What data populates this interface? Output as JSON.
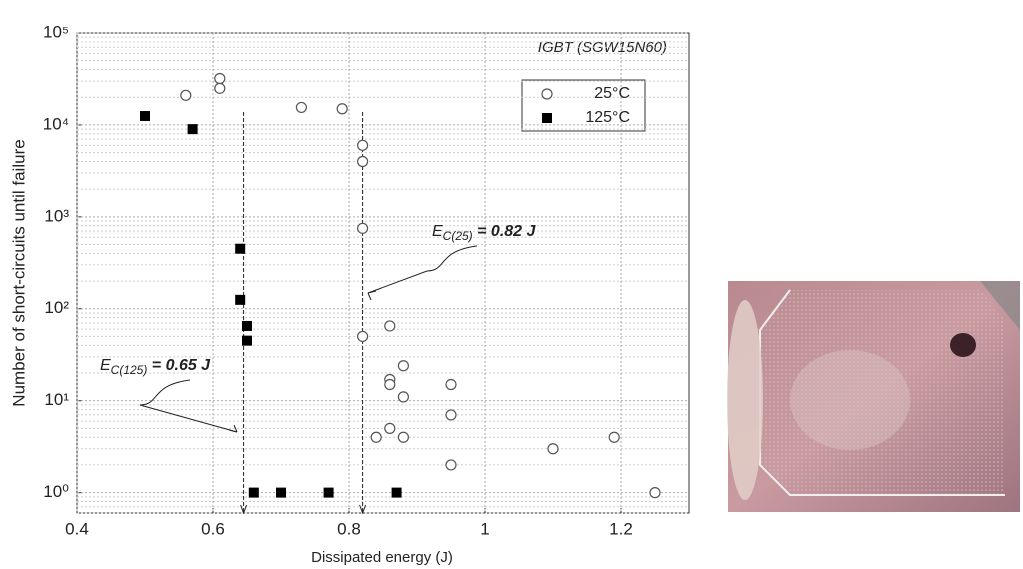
{
  "chart_data": {
    "type": "scatter",
    "annotation_title": "IGBT (SGW15N60)",
    "xlabel": "Dissipated energy (J)",
    "ylabel": "Number of short-circuits until failure",
    "xlim": [
      0.4,
      1.3
    ],
    "xticks": [
      0.4,
      0.6,
      0.8,
      1,
      1.2
    ],
    "ylim": [
      0.6,
      100000
    ],
    "log_y": true,
    "grid": true,
    "yticks": [
      {
        "value": 1,
        "label": "10⁰"
      },
      {
        "value": 10,
        "label": "10¹"
      },
      {
        "value": 100,
        "label": "10²"
      },
      {
        "value": 1000,
        "label": "10³"
      },
      {
        "value": 10000,
        "label": "10⁴"
      },
      {
        "value": 100000,
        "label": "10⁵"
      }
    ],
    "legend": "upper right",
    "series": [
      {
        "name": "25°C",
        "marker": "circle",
        "color": "#555555",
        "x": [
          0.56,
          0.61,
          0.61,
          0.73,
          0.79,
          0.82,
          0.82,
          0.82,
          0.82,
          0.86,
          0.88,
          0.86,
          0.86,
          0.88,
          0.86,
          0.84,
          0.88,
          0.95,
          0.95,
          0.95,
          1.1,
          1.19,
          1.25
        ],
        "values": [
          21000,
          32000,
          25000,
          15500,
          15000,
          6000,
          4000,
          750,
          50,
          65,
          24,
          17,
          15,
          11,
          5,
          4,
          4,
          15,
          7,
          2,
          3,
          4,
          1
        ]
      },
      {
        "name": "125°C",
        "marker": "square",
        "color": "#000000",
        "x": [
          0.5,
          0.57,
          0.64,
          0.64,
          0.65,
          0.65,
          0.66,
          0.7,
          0.77,
          0.87
        ],
        "values": [
          12500,
          9000,
          450,
          125,
          65,
          45,
          1,
          1,
          1,
          1
        ]
      }
    ],
    "markers": [
      {
        "x": 0.82,
        "symbol": "E",
        "subscript": "C(25)",
        "text": " = 0.82 J"
      },
      {
        "x": 0.645,
        "symbol": "E",
        "subscript": "C(125)",
        "text": " = 0.65 J"
      }
    ]
  }
}
